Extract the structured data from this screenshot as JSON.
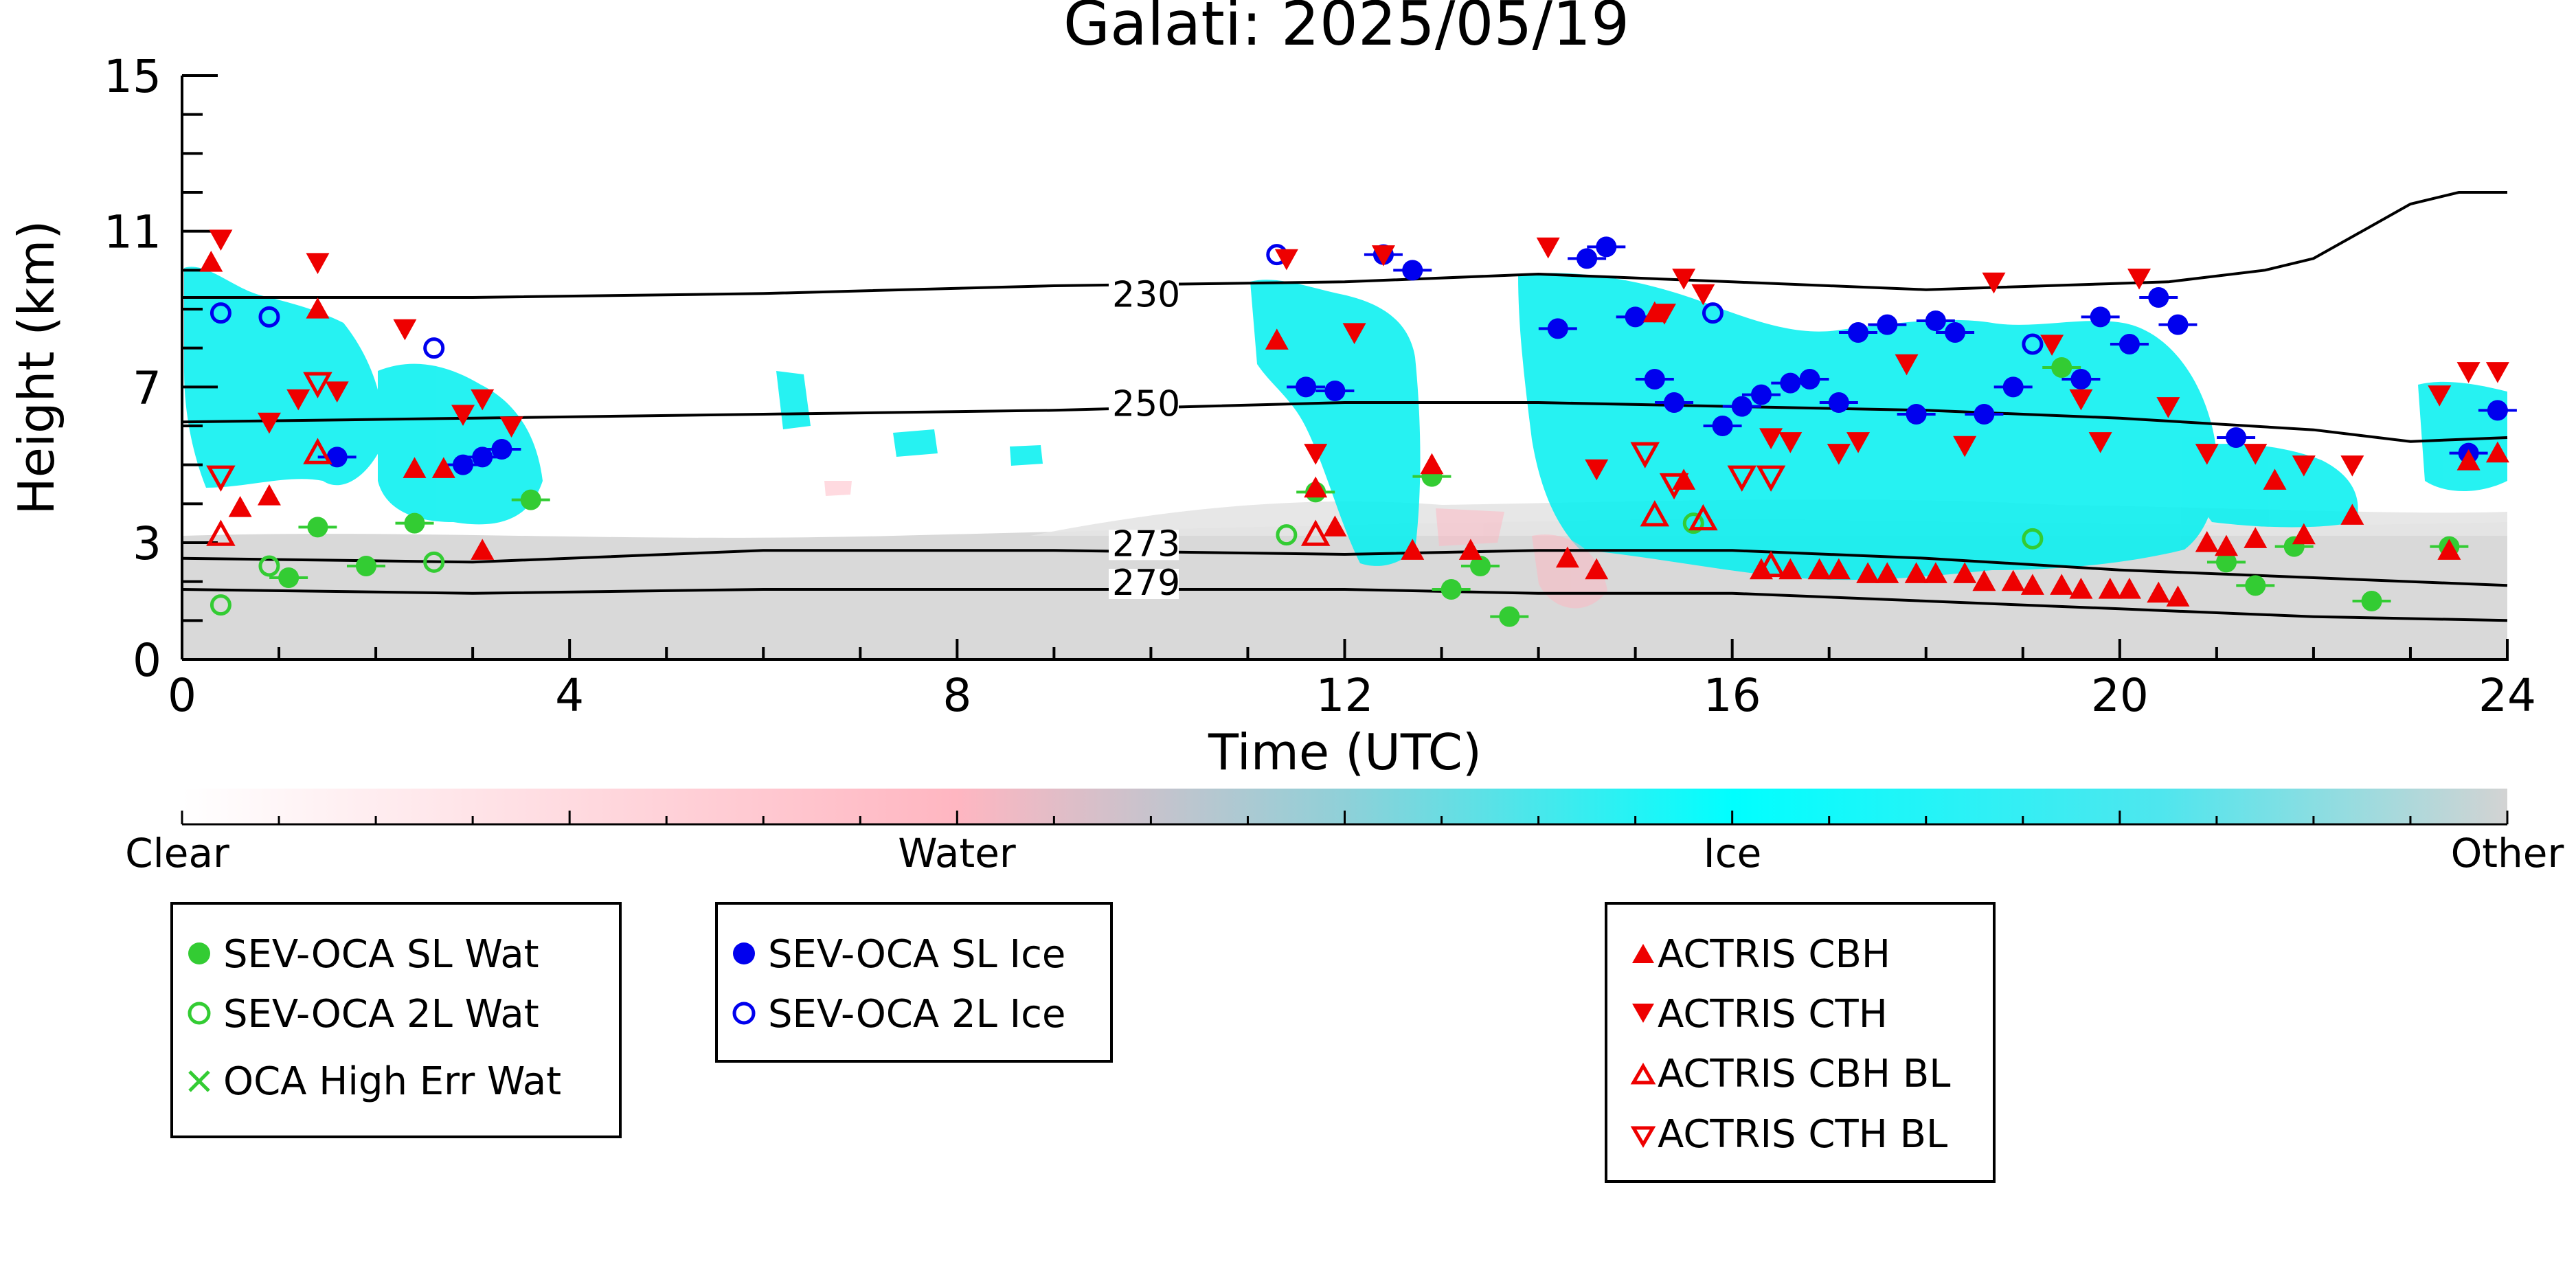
{
  "chart_data": {
    "type": "scatter",
    "title": "Galati: 2025/05/19",
    "xlabel": "Time (UTC)",
    "ylabel": "Height (km)",
    "xlim": [
      0,
      24
    ],
    "ylim": [
      0,
      15
    ],
    "x_ticks": [
      0,
      4,
      8,
      12,
      16,
      20,
      24
    ],
    "y_ticks": [
      0,
      3,
      7,
      11,
      15
    ],
    "colorbar": {
      "labels": [
        "Clear",
        "Water",
        "Ice",
        "Other"
      ],
      "colors": [
        "#ffffff",
        "#ffb6c1",
        "#00ffff",
        "#d3d3d3"
      ]
    },
    "isotherms": [
      {
        "label": "230",
        "label_x": 9.6,
        "label_y": 9.2,
        "points": [
          [
            0,
            9.3
          ],
          [
            3,
            9.3
          ],
          [
            6,
            9.4
          ],
          [
            9,
            9.6
          ],
          [
            12,
            9.7
          ],
          [
            14,
            9.9
          ],
          [
            16,
            9.7
          ],
          [
            18,
            9.5
          ],
          [
            20.5,
            9.7
          ],
          [
            21.5,
            10.0
          ],
          [
            22,
            10.3
          ],
          [
            22.5,
            11.0
          ],
          [
            23,
            11.7
          ],
          [
            23.5,
            12.0
          ],
          [
            24,
            12.0
          ]
        ]
      },
      {
        "label": "250",
        "label_x": 9.6,
        "label_y": 6.4,
        "points": [
          [
            0,
            6.1
          ],
          [
            3,
            6.2
          ],
          [
            6,
            6.3
          ],
          [
            9,
            6.4
          ],
          [
            12,
            6.6
          ],
          [
            14,
            6.6
          ],
          [
            16,
            6.5
          ],
          [
            18,
            6.4
          ],
          [
            20,
            6.2
          ],
          [
            22,
            5.9
          ],
          [
            23,
            5.6
          ],
          [
            24,
            5.7
          ]
        ]
      },
      {
        "label": "273",
        "label_x": 9.6,
        "label_y": 2.8,
        "points": [
          [
            0,
            2.6
          ],
          [
            3,
            2.5
          ],
          [
            6,
            2.8
          ],
          [
            9,
            2.8
          ],
          [
            12,
            2.7
          ],
          [
            14,
            2.8
          ],
          [
            16,
            2.8
          ],
          [
            18,
            2.6
          ],
          [
            20,
            2.3
          ],
          [
            22,
            2.1
          ],
          [
            24,
            1.9
          ]
        ]
      },
      {
        "label": "279",
        "label_x": 9.6,
        "label_y": 1.8,
        "points": [
          [
            0,
            1.8
          ],
          [
            3,
            1.7
          ],
          [
            6,
            1.8
          ],
          [
            9,
            1.8
          ],
          [
            12,
            1.8
          ],
          [
            14,
            1.7
          ],
          [
            16,
            1.7
          ],
          [
            18,
            1.5
          ],
          [
            20,
            1.3
          ],
          [
            22,
            1.1
          ],
          [
            24,
            1.0
          ]
        ]
      }
    ],
    "series": [
      {
        "name": "SEV-OCA SL Wat",
        "color": "#33cc33",
        "marker": "circle",
        "filled": true,
        "points": [
          [
            1.1,
            2.1
          ],
          [
            1.4,
            3.4
          ],
          [
            1.9,
            2.4
          ],
          [
            2.4,
            3.5
          ],
          [
            3.6,
            4.1
          ],
          [
            11.7,
            4.3
          ],
          [
            12.9,
            4.7
          ],
          [
            13.1,
            1.8
          ],
          [
            13.4,
            2.4
          ],
          [
            13.7,
            1.1
          ],
          [
            19.4,
            7.5
          ],
          [
            21.1,
            2.5
          ],
          [
            21.4,
            1.9
          ],
          [
            21.8,
            2.9
          ],
          [
            22.6,
            1.5
          ],
          [
            23.4,
            2.9
          ]
        ]
      },
      {
        "name": "SEV-OCA 2L Wat",
        "color": "#33cc33",
        "marker": "circle",
        "filled": false,
        "points": [
          [
            0.4,
            1.4
          ],
          [
            0.9,
            2.4
          ],
          [
            2.6,
            2.5
          ],
          [
            11.4,
            3.2
          ],
          [
            15.6,
            3.5
          ],
          [
            19.1,
            3.1
          ]
        ]
      },
      {
        "name": "OCA High Err Wat",
        "color": "#33cc33",
        "marker": "x",
        "filled": false,
        "points": []
      },
      {
        "name": "SEV-OCA SL Ice",
        "color": "#0000ee",
        "marker": "circle",
        "filled": true,
        "points": [
          [
            1.6,
            5.2
          ],
          [
            2.9,
            5.0
          ],
          [
            3.1,
            5.2
          ],
          [
            3.3,
            5.4
          ],
          [
            11.6,
            7.0
          ],
          [
            11.9,
            6.9
          ],
          [
            12.4,
            10.4
          ],
          [
            12.7,
            10.0
          ],
          [
            14.2,
            8.5
          ],
          [
            14.5,
            10.3
          ],
          [
            14.7,
            10.6
          ],
          [
            15.0,
            8.8
          ],
          [
            15.2,
            7.2
          ],
          [
            15.4,
            6.6
          ],
          [
            15.9,
            6.0
          ],
          [
            16.1,
            6.5
          ],
          [
            16.3,
            6.8
          ],
          [
            16.6,
            7.1
          ],
          [
            16.8,
            7.2
          ],
          [
            17.1,
            6.6
          ],
          [
            17.3,
            8.4
          ],
          [
            17.6,
            8.6
          ],
          [
            17.9,
            6.3
          ],
          [
            18.1,
            8.7
          ],
          [
            18.3,
            8.4
          ],
          [
            18.6,
            6.3
          ],
          [
            18.9,
            7.0
          ],
          [
            19.6,
            7.2
          ],
          [
            19.8,
            8.8
          ],
          [
            20.1,
            8.1
          ],
          [
            20.4,
            9.3
          ],
          [
            20.6,
            8.6
          ],
          [
            21.2,
            5.7
          ],
          [
            23.6,
            5.3
          ],
          [
            23.9,
            6.4
          ]
        ]
      },
      {
        "name": "SEV-OCA 2L Ice",
        "color": "#0000ee",
        "marker": "circle",
        "filled": false,
        "points": [
          [
            0.4,
            8.9
          ],
          [
            0.9,
            8.8
          ],
          [
            2.6,
            8.0
          ],
          [
            11.3,
            10.4
          ],
          [
            15.8,
            8.9
          ],
          [
            19.1,
            8.1
          ]
        ]
      },
      {
        "name": "ACTRIS CBH",
        "color": "#ee0000",
        "marker": "triangle-up",
        "filled": true,
        "points": [
          [
            0.3,
            10.2
          ],
          [
            0.6,
            3.9
          ],
          [
            0.9,
            4.2
          ],
          [
            1.4,
            9.0
          ],
          [
            2.4,
            4.9
          ],
          [
            2.7,
            4.9
          ],
          [
            3.1,
            2.8
          ],
          [
            11.3,
            8.2
          ],
          [
            11.7,
            4.4
          ],
          [
            11.9,
            3.4
          ],
          [
            12.7,
            2.8
          ],
          [
            12.9,
            5.0
          ],
          [
            13.3,
            2.8
          ],
          [
            14.3,
            2.6
          ],
          [
            14.6,
            2.3
          ],
          [
            15.2,
            8.9
          ],
          [
            15.5,
            4.6
          ],
          [
            16.3,
            2.3
          ],
          [
            16.6,
            2.3
          ],
          [
            16.9,
            2.3
          ],
          [
            17.1,
            2.3
          ],
          [
            17.4,
            2.2
          ],
          [
            17.6,
            2.2
          ],
          [
            17.9,
            2.2
          ],
          [
            18.1,
            2.2
          ],
          [
            18.4,
            2.2
          ],
          [
            18.6,
            2.0
          ],
          [
            18.9,
            2.0
          ],
          [
            19.1,
            1.9
          ],
          [
            19.4,
            1.9
          ],
          [
            19.6,
            1.8
          ],
          [
            19.9,
            1.8
          ],
          [
            20.1,
            1.8
          ],
          [
            20.4,
            1.7
          ],
          [
            20.6,
            1.6
          ],
          [
            20.9,
            3.0
          ],
          [
            21.1,
            2.9
          ],
          [
            21.4,
            3.1
          ],
          [
            21.6,
            4.6
          ],
          [
            21.9,
            3.2
          ],
          [
            22.4,
            3.7
          ],
          [
            23.4,
            2.8
          ],
          [
            23.6,
            5.1
          ],
          [
            23.9,
            5.3
          ]
        ]
      },
      {
        "name": "ACTRIS CTH",
        "color": "#ee0000",
        "marker": "triangle-down",
        "filled": true,
        "points": [
          [
            0.4,
            10.8
          ],
          [
            0.9,
            6.1
          ],
          [
            1.2,
            6.7
          ],
          [
            1.4,
            10.2
          ],
          [
            1.6,
            6.9
          ],
          [
            2.3,
            8.5
          ],
          [
            2.9,
            6.3
          ],
          [
            3.1,
            6.7
          ],
          [
            3.4,
            6.0
          ],
          [
            11.4,
            10.3
          ],
          [
            11.7,
            5.3
          ],
          [
            12.1,
            8.4
          ],
          [
            12.4,
            10.4
          ],
          [
            14.1,
            10.6
          ],
          [
            14.6,
            4.9
          ],
          [
            15.3,
            8.9
          ],
          [
            15.5,
            9.8
          ],
          [
            15.7,
            9.4
          ],
          [
            16.4,
            5.7
          ],
          [
            16.6,
            5.6
          ],
          [
            17.1,
            5.3
          ],
          [
            17.3,
            5.6
          ],
          [
            17.8,
            7.6
          ],
          [
            18.4,
            5.5
          ],
          [
            18.7,
            9.7
          ],
          [
            19.3,
            8.1
          ],
          [
            19.6,
            6.7
          ],
          [
            19.8,
            5.6
          ],
          [
            20.2,
            9.8
          ],
          [
            20.5,
            6.5
          ],
          [
            20.9,
            5.3
          ],
          [
            21.4,
            5.3
          ],
          [
            21.9,
            5.0
          ],
          [
            22.4,
            5.0
          ],
          [
            23.3,
            6.8
          ],
          [
            23.6,
            7.4
          ],
          [
            23.9,
            7.4
          ]
        ]
      },
      {
        "name": "ACTRIS CBH BL",
        "color": "#ee0000",
        "marker": "triangle-up",
        "filled": false,
        "points": [
          [
            0.4,
            3.2
          ],
          [
            1.4,
            5.3
          ],
          [
            11.7,
            3.2
          ],
          [
            15.2,
            3.7
          ],
          [
            15.7,
            3.6
          ],
          [
            16.4,
            2.4
          ]
        ]
      },
      {
        "name": "ACTRIS CTH BL",
        "color": "#ee0000",
        "marker": "triangle-down",
        "filled": false,
        "points": [
          [
            0.4,
            4.7
          ],
          [
            1.4,
            7.1
          ],
          [
            15.1,
            5.3
          ],
          [
            15.4,
            4.5
          ],
          [
            16.1,
            4.7
          ],
          [
            16.4,
            4.7
          ]
        ]
      }
    ]
  }
}
